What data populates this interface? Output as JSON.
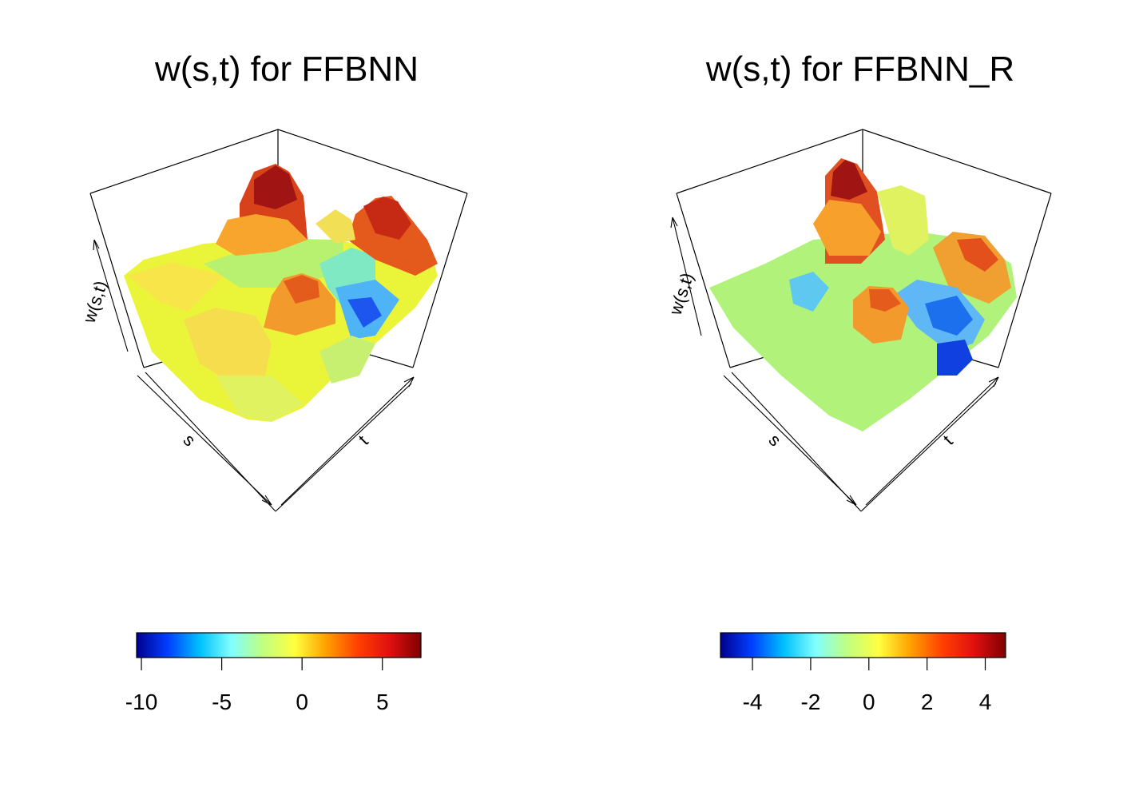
{
  "chart_data": [
    {
      "type": "surface",
      "title": "w(s,t) for FFBNN",
      "axes": {
        "x": "s",
        "y": "t",
        "z": "w(s,t)"
      },
      "colorbar": {
        "range": [
          -10.3,
          7.4
        ],
        "ticks": [
          -10,
          -5,
          0,
          5
        ],
        "tick_labels": [
          "-10",
          "-5",
          "0",
          "5"
        ],
        "colormap": "jet",
        "colors": [
          "#00008f",
          "#0040ff",
          "#00c0ff",
          "#80ffff",
          "#c0ff80",
          "#ffff40",
          "#ffa000",
          "#ff4000",
          "#e01010",
          "#800000"
        ]
      }
    },
    {
      "type": "surface",
      "title": "w(s,t) for FFBNN_R",
      "axes": {
        "x": "s",
        "y": "t",
        "z": "w(s,t)"
      },
      "colorbar": {
        "range": [
          -5.1,
          4.7
        ],
        "ticks": [
          -4,
          -2,
          0,
          2,
          4
        ],
        "tick_labels": [
          "-4",
          "-2",
          "0",
          "2",
          "4"
        ],
        "colormap": "jet",
        "colors": [
          "#00008f",
          "#0040ff",
          "#00c0ff",
          "#80ffff",
          "#c0ff80",
          "#ffff40",
          "#ffa000",
          "#ff4000",
          "#e01010",
          "#800000"
        ]
      }
    }
  ]
}
